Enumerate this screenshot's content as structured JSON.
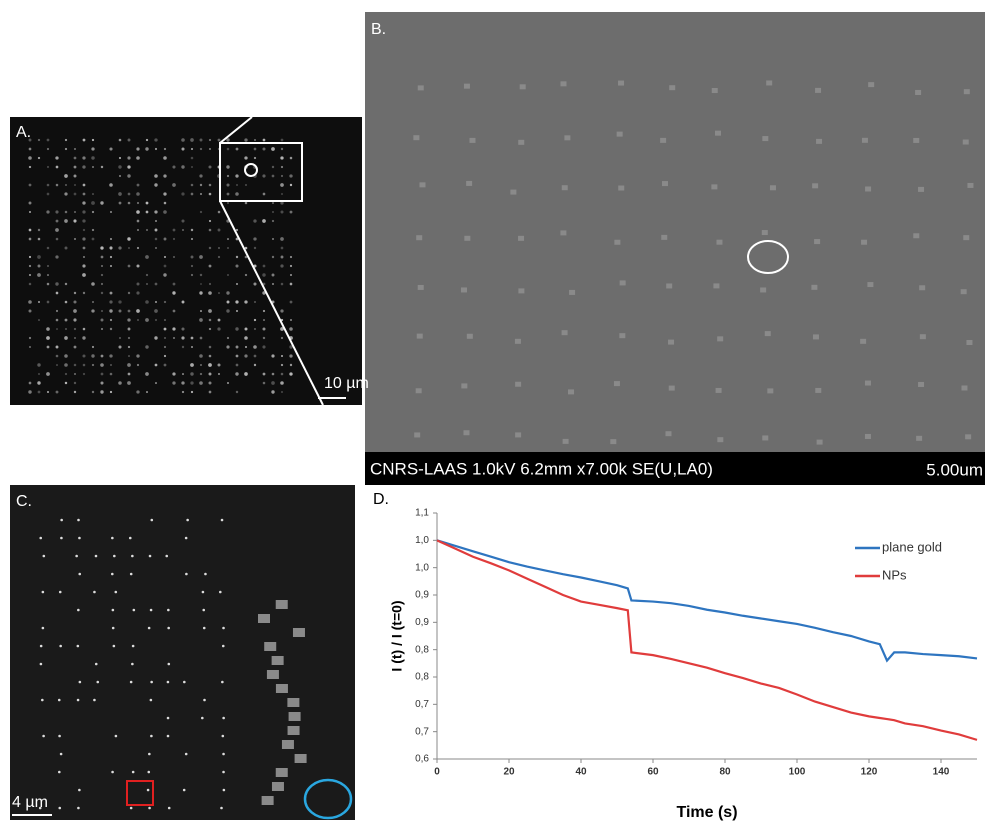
{
  "panels": {
    "a_label": "A.",
    "a_scale": "10 µm",
    "b_label": "B.",
    "b_info": "CNRS-LAAS 1.0kV 6.2mm x7.00k SE(U,LA0)",
    "b_scale": "5.00um",
    "c_label": "C.",
    "c_scale": "4 µm",
    "d_label": "D."
  },
  "chart_data": {
    "type": "line",
    "x_label": "Time (s)",
    "y_label": "I (t) / I (t=0)",
    "x": [
      0,
      5,
      10,
      15,
      20,
      25,
      30,
      35,
      40,
      45,
      50,
      53,
      54,
      60,
      65,
      70,
      75,
      80,
      85,
      90,
      95,
      100,
      105,
      110,
      115,
      120,
      123,
      125,
      127,
      130,
      135,
      140,
      145,
      150
    ],
    "series": [
      {
        "name": "plane gold",
        "color": "#2e75c0",
        "values": [
          1.0,
          0.99,
          0.98,
          0.97,
          0.96,
          0.952,
          0.945,
          0.938,
          0.932,
          0.925,
          0.918,
          0.912,
          0.89,
          0.888,
          0.885,
          0.88,
          0.873,
          0.868,
          0.862,
          0.857,
          0.852,
          0.847,
          0.84,
          0.832,
          0.825,
          0.815,
          0.81,
          0.78,
          0.795,
          0.795,
          0.792,
          0.79,
          0.788,
          0.784
        ]
      },
      {
        "name": "NPs",
        "color": "#e03c3c",
        "values": [
          1.0,
          0.985,
          0.97,
          0.958,
          0.945,
          0.93,
          0.915,
          0.9,
          0.888,
          0.882,
          0.876,
          0.872,
          0.795,
          0.79,
          0.783,
          0.775,
          0.767,
          0.757,
          0.748,
          0.738,
          0.73,
          0.718,
          0.705,
          0.695,
          0.685,
          0.678,
          0.675,
          0.673,
          0.671,
          0.665,
          0.66,
          0.652,
          0.645,
          0.635
        ]
      }
    ],
    "xlim": [
      0,
      150
    ],
    "xticks": [
      0,
      20,
      40,
      60,
      80,
      100,
      120,
      140
    ],
    "ylim": [
      0.6,
      1.05
    ],
    "yticks": [
      {
        "value": 0.6,
        "label": "0,6"
      },
      {
        "value": 0.65,
        "label": "0,7"
      },
      {
        "value": 0.7,
        "label": "0,7"
      },
      {
        "value": 0.75,
        "label": "0,8"
      },
      {
        "value": 0.8,
        "label": "0,8"
      },
      {
        "value": 0.85,
        "label": "0,9"
      },
      {
        "value": 0.9,
        "label": "0,9"
      },
      {
        "value": 0.95,
        "label": "1,0"
      },
      {
        "value": 1.0,
        "label": "1,0"
      },
      {
        "value": 1.05,
        "label": "1,1"
      }
    ],
    "legend": "upper right"
  }
}
